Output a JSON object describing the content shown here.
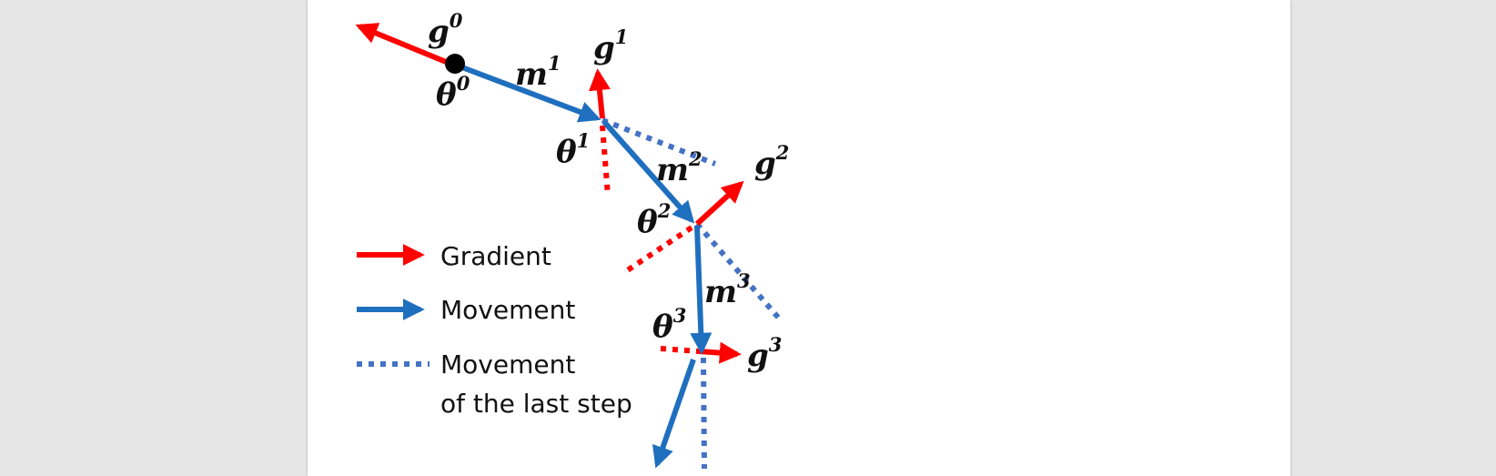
{
  "colors": {
    "gradient": "#ff0000",
    "movement": "#1f6fbf",
    "last_step": "#4472c4",
    "point": "#000000",
    "page_bg": "#ffffff",
    "canvas_bg": "#e6e6e6"
  },
  "labels": {
    "g0": {
      "base": "g",
      "sup": "0"
    },
    "theta0": {
      "base": "θ",
      "sup": "0"
    },
    "m1": {
      "base": "m",
      "sup": "1"
    },
    "g1": {
      "base": "g",
      "sup": "1"
    },
    "theta1": {
      "base": "θ",
      "sup": "1"
    },
    "m2": {
      "base": "m",
      "sup": "2"
    },
    "g2": {
      "base": "g",
      "sup": "2"
    },
    "theta2": {
      "base": "θ",
      "sup": "2"
    },
    "m3": {
      "base": "m",
      "sup": "3"
    },
    "theta3": {
      "base": "θ",
      "sup": "3"
    },
    "g3": {
      "base": "g",
      "sup": "3"
    }
  },
  "legend": {
    "gradient_label": "Gradient",
    "movement_label": "Movement",
    "last_step_label_line1": "Movement",
    "last_step_label_line2": "of the last step"
  }
}
